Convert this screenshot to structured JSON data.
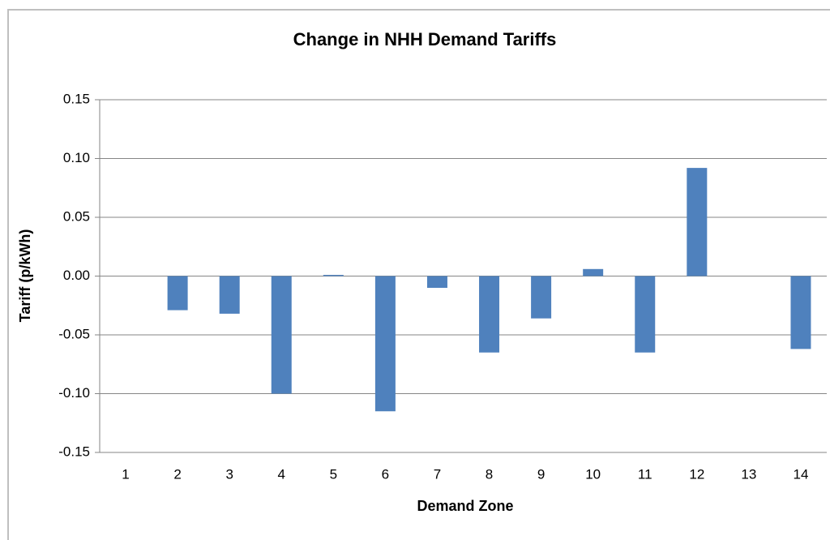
{
  "chart_data": {
    "type": "bar",
    "title": "Change in NHH Demand Tariffs",
    "xlabel": "Demand Zone",
    "ylabel": "Tariff (p/kWh)",
    "categories": [
      "1",
      "2",
      "3",
      "4",
      "5",
      "6",
      "7",
      "8",
      "9",
      "10",
      "11",
      "12",
      "13",
      "14"
    ],
    "values": [
      0,
      -0.029,
      -0.032,
      -0.1,
      0.001,
      -0.115,
      -0.01,
      -0.065,
      -0.036,
      0.006,
      -0.065,
      0.092,
      0,
      -0.062
    ],
    "color": "#4f81bd",
    "ylim": [
      -0.15,
      0.15
    ],
    "yticks": [
      -0.15,
      {
        "value": -0.1,
        "label": "-0.10"
      },
      -0.05,
      {
        "value": 0,
        "label": "0.00"
      },
      0.05,
      {
        "value": 0.1,
        "label": "0.10"
      },
      0.15
    ],
    "grid": true
  }
}
